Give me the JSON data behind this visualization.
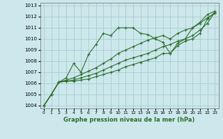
{
  "title": "Graphe pression niveau de la mer (hPa)",
  "bg_color": "#cce8ec",
  "grid_color": "#aacccc",
  "line_color": "#2d6e2d",
  "x_ticks": [
    0,
    1,
    2,
    3,
    4,
    5,
    6,
    7,
    8,
    9,
    10,
    11,
    12,
    13,
    14,
    15,
    16,
    17,
    18,
    19,
    20,
    21,
    22,
    23
  ],
  "ylim": [
    1003.75,
    1013.25
  ],
  "yticks": [
    1004,
    1005,
    1006,
    1007,
    1008,
    1009,
    1010,
    1011,
    1012,
    1013
  ],
  "series": [
    [
      1004.0,
      1005.0,
      1006.1,
      1006.5,
      1007.8,
      1007.0,
      1008.6,
      1009.5,
      1010.5,
      1010.3,
      1011.0,
      1011.0,
      1011.0,
      1010.5,
      1010.4,
      1010.0,
      1009.7,
      1008.7,
      1009.6,
      1010.0,
      1011.0,
      1011.5,
      1012.2,
      1012.5
    ],
    [
      1004.0,
      1005.0,
      1006.1,
      1006.3,
      1006.5,
      1006.8,
      1007.1,
      1007.4,
      1007.8,
      1008.2,
      1008.7,
      1009.0,
      1009.3,
      1009.6,
      1009.9,
      1010.1,
      1010.3,
      1010.0,
      1010.5,
      1010.8,
      1011.0,
      1011.4,
      1011.9,
      1012.3
    ],
    [
      1004.0,
      1005.0,
      1006.1,
      1006.2,
      1006.3,
      1006.5,
      1006.7,
      1006.9,
      1007.2,
      1007.5,
      1007.8,
      1008.1,
      1008.3,
      1008.5,
      1008.7,
      1009.0,
      1009.3,
      1009.5,
      1009.8,
      1010.0,
      1010.3,
      1010.8,
      1011.4,
      1012.4
    ],
    [
      1004.0,
      1005.0,
      1006.1,
      1006.2,
      1006.2,
      1006.3,
      1006.4,
      1006.6,
      1006.8,
      1007.0,
      1007.2,
      1007.5,
      1007.7,
      1007.9,
      1008.1,
      1008.3,
      1008.7,
      1008.7,
      1009.4,
      1009.8,
      1010.0,
      1010.5,
      1011.8,
      1012.4
    ]
  ]
}
